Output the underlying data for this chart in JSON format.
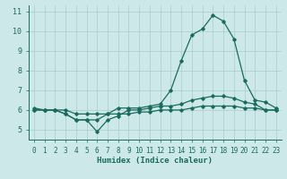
{
  "xlabel": "Humidex (Indice chaleur)",
  "bg_color": "#cce8e8",
  "grid_color_major": "#aacccc",
  "grid_color_minor": "#bbdddd",
  "line_color": "#1a6b5e",
  "xlim": [
    -0.5,
    23.5
  ],
  "ylim": [
    4.5,
    11.3
  ],
  "xticks": [
    0,
    1,
    2,
    3,
    4,
    5,
    6,
    7,
    8,
    9,
    10,
    11,
    12,
    13,
    14,
    15,
    16,
    17,
    18,
    19,
    20,
    21,
    22,
    23
  ],
  "yticks": [
    5,
    6,
    7,
    8,
    9,
    10,
    11
  ],
  "hours": [
    0,
    1,
    2,
    3,
    4,
    5,
    6,
    7,
    8,
    9,
    10,
    11,
    12,
    13,
    14,
    15,
    16,
    17,
    18,
    19,
    20,
    21,
    22,
    23
  ],
  "line_max": [
    6.0,
    6.0,
    6.0,
    5.8,
    5.5,
    5.5,
    5.5,
    5.8,
    6.1,
    6.1,
    6.1,
    6.2,
    6.3,
    7.0,
    8.5,
    9.8,
    10.1,
    10.8,
    10.5,
    9.6,
    7.5,
    6.5,
    6.4,
    6.1
  ],
  "line_mean": [
    6.0,
    6.0,
    6.0,
    5.8,
    5.5,
    5.5,
    4.9,
    5.5,
    5.7,
    6.0,
    6.0,
    6.1,
    6.2,
    6.2,
    6.3,
    6.5,
    6.6,
    6.7,
    6.7,
    6.6,
    6.4,
    6.3,
    6.0,
    6.0
  ],
  "line_min": [
    6.1,
    6.0,
    6.0,
    6.0,
    5.8,
    5.8,
    5.8,
    5.8,
    5.8,
    5.8,
    5.9,
    5.9,
    6.0,
    6.0,
    6.0,
    6.1,
    6.2,
    6.2,
    6.2,
    6.2,
    6.1,
    6.1,
    6.0,
    6.0
  ],
  "tick_fontsize": 5.5,
  "xlabel_fontsize": 6.5
}
